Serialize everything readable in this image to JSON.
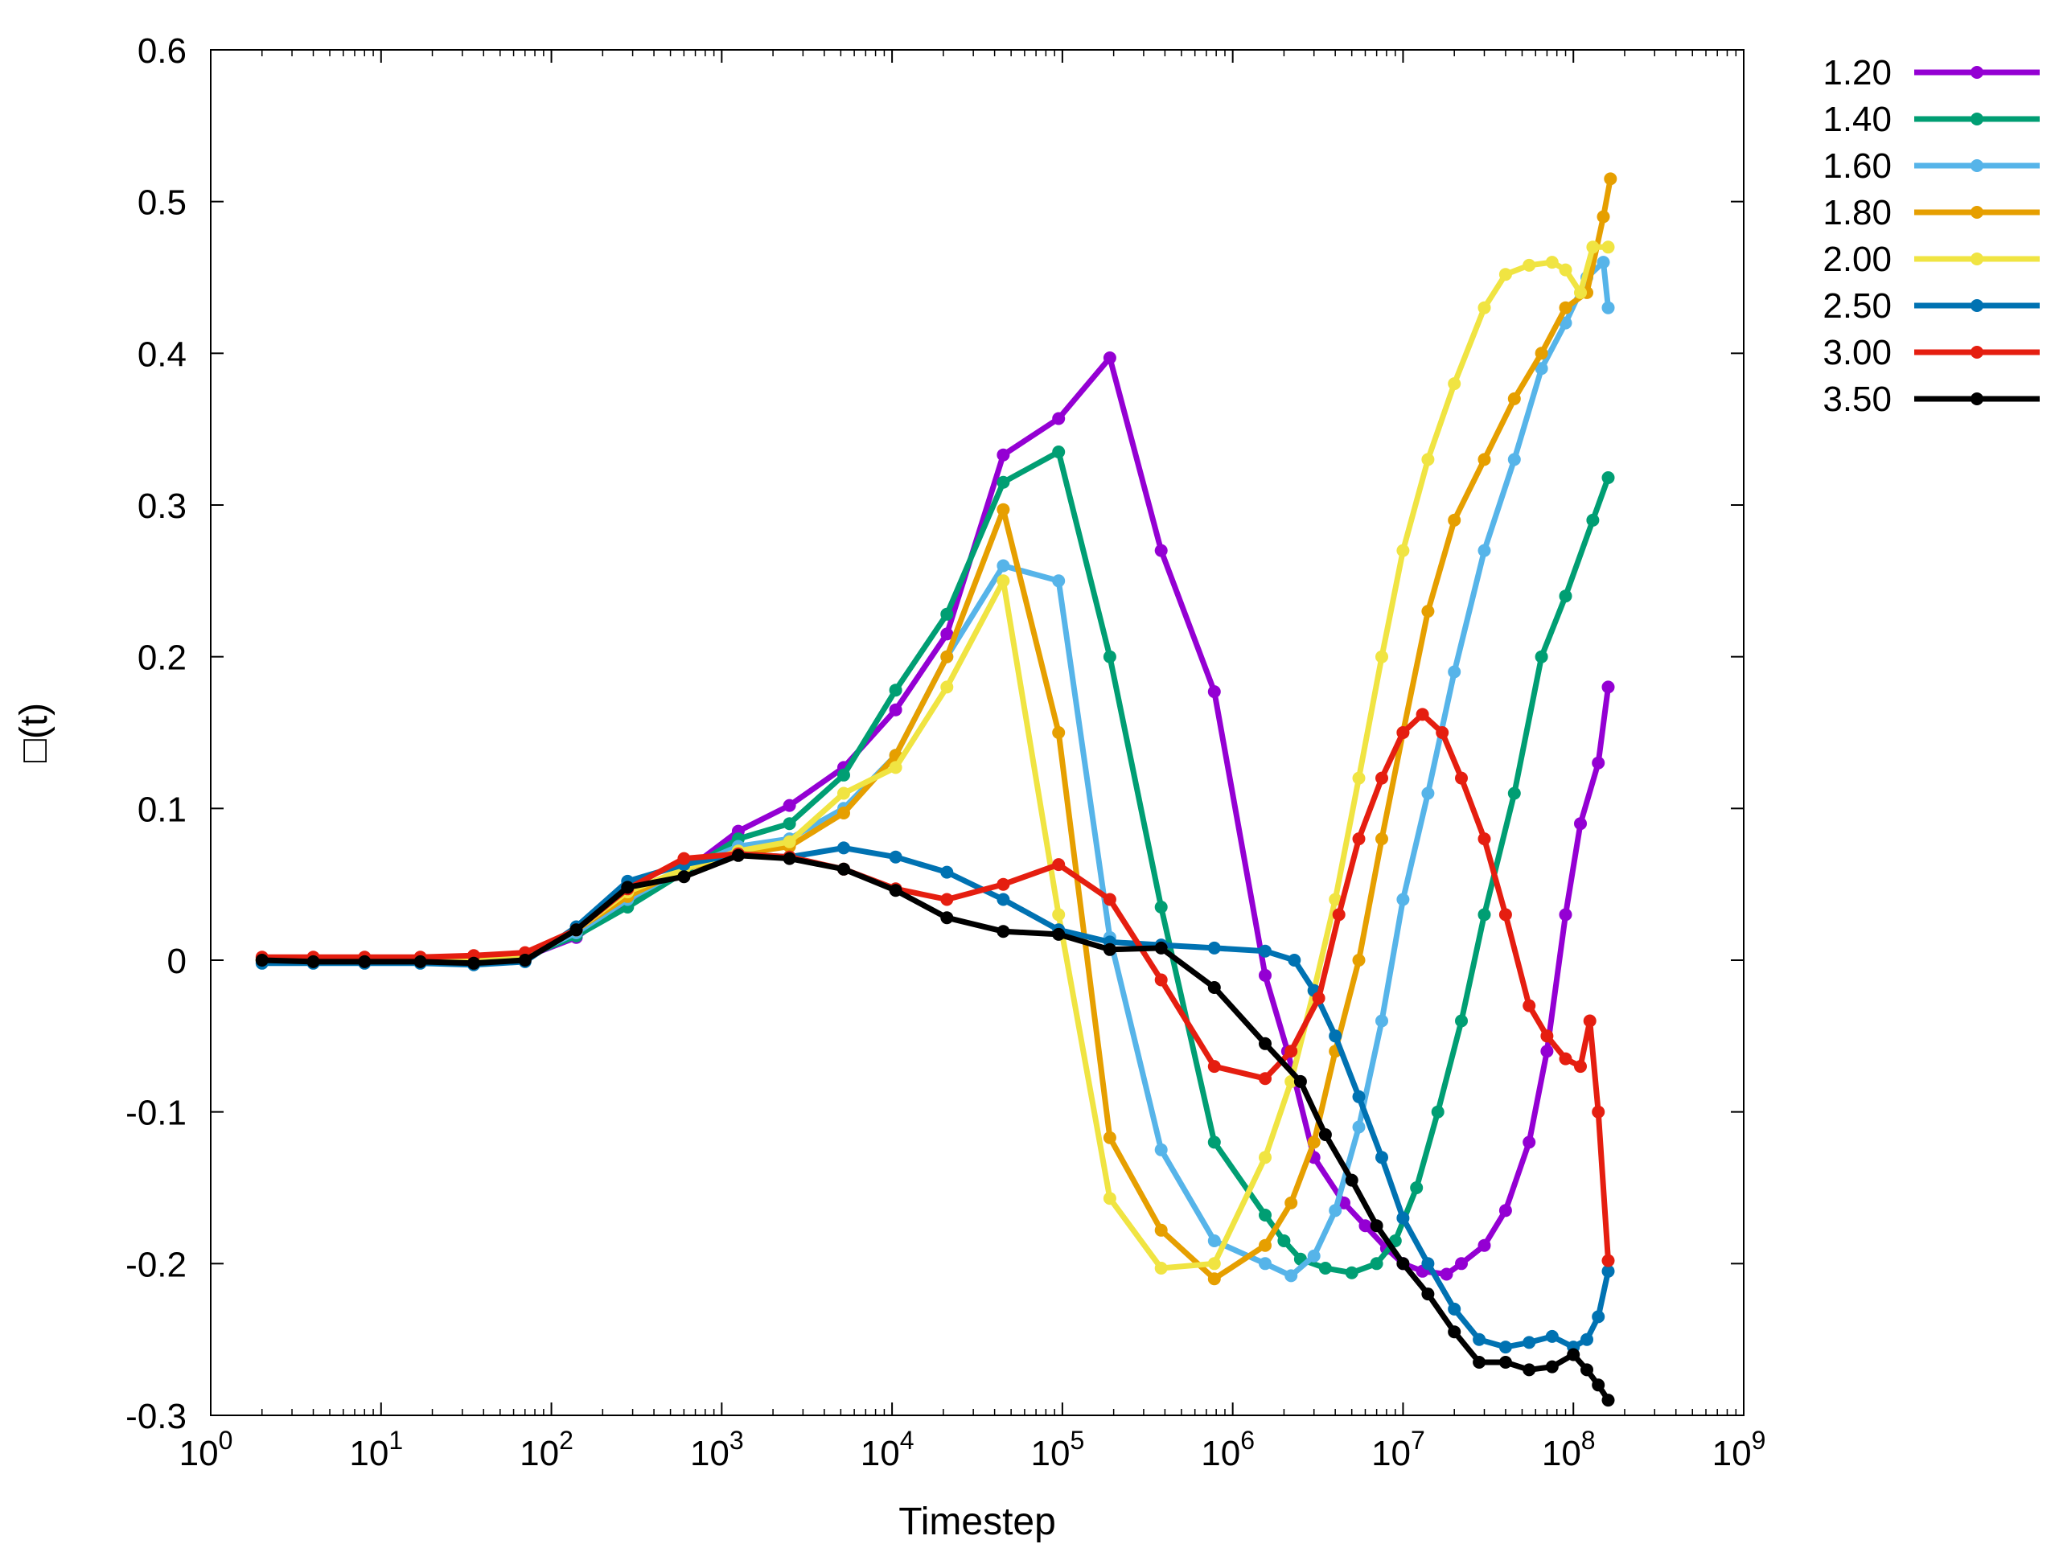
{
  "chart_data": {
    "type": "line",
    "xlabel": "Timestep",
    "ylabel": "□(t)",
    "xscale": "log",
    "xlim": [
      1,
      1000000000
    ],
    "ylim": [
      -0.3,
      0.6
    ],
    "x_tick_labels": [
      {
        "base": "10",
        "exp": "0"
      },
      {
        "base": "10",
        "exp": "1"
      },
      {
        "base": "10",
        "exp": "2"
      },
      {
        "base": "10",
        "exp": "3"
      },
      {
        "base": "10",
        "exp": "4"
      },
      {
        "base": "10",
        "exp": "5"
      },
      {
        "base": "10",
        "exp": "6"
      },
      {
        "base": "10",
        "exp": "7"
      },
      {
        "base": "10",
        "exp": "8"
      },
      {
        "base": "10",
        "exp": "9"
      }
    ],
    "y_ticks": [
      -0.3,
      -0.2,
      -0.1,
      0,
      0.1,
      0.2,
      0.3,
      0.4,
      0.5,
      0.6
    ],
    "y_tick_labels": [
      "-0.3",
      "-0.2",
      "-0.1",
      "0",
      "0.1",
      "0.2",
      "0.3",
      "0.4",
      "0.5",
      "0.6"
    ],
    "grid": false,
    "legend_position": "outside-top-right",
    "series": [
      {
        "name": "1.20",
        "color": "#9400d3",
        "points": [
          [
            2,
            0.0
          ],
          [
            4,
            0.001
          ],
          [
            8,
            0.001
          ],
          [
            17,
            0.0
          ],
          [
            35,
            0.0
          ],
          [
            70,
            0.002
          ],
          [
            140,
            0.015
          ],
          [
            280,
            0.04
          ],
          [
            600,
            0.058
          ],
          [
            1250,
            0.085
          ],
          [
            2500,
            0.102
          ],
          [
            5200,
            0.127
          ],
          [
            10500,
            0.165
          ],
          [
            21000,
            0.215
          ],
          [
            45000,
            0.333
          ],
          [
            95000,
            0.357
          ],
          [
            190000,
            0.397
          ],
          [
            380000,
            0.27
          ],
          [
            780000,
            0.177
          ],
          [
            1550000,
            -0.01
          ],
          [
            2100000,
            -0.06
          ],
          [
            3000000,
            -0.13
          ],
          [
            4500000,
            -0.16
          ],
          [
            6000000,
            -0.175
          ],
          [
            8000000,
            -0.19
          ],
          [
            10000000,
            -0.2
          ],
          [
            13000000,
            -0.205
          ],
          [
            18000000,
            -0.207
          ],
          [
            22000000,
            -0.2
          ],
          [
            30000000,
            -0.188
          ],
          [
            40000000,
            -0.165
          ],
          [
            55000000,
            -0.12
          ],
          [
            70000000,
            -0.06
          ],
          [
            90000000,
            0.03
          ],
          [
            110000000,
            0.09
          ],
          [
            140000000,
            0.13
          ],
          [
            160000000,
            0.18
          ]
        ]
      },
      {
        "name": "1.40",
        "color": "#009e73",
        "points": [
          [
            2,
            0.0
          ],
          [
            4,
            0.001
          ],
          [
            8,
            0.001
          ],
          [
            17,
            0.0
          ],
          [
            35,
            0.0
          ],
          [
            70,
            0.002
          ],
          [
            140,
            0.016
          ],
          [
            280,
            0.035
          ],
          [
            600,
            0.058
          ],
          [
            1250,
            0.08
          ],
          [
            2500,
            0.09
          ],
          [
            5200,
            0.122
          ],
          [
            10500,
            0.178
          ],
          [
            21000,
            0.228
          ],
          [
            45000,
            0.315
          ],
          [
            95000,
            0.335
          ],
          [
            190000,
            0.2
          ],
          [
            380000,
            0.035
          ],
          [
            780000,
            -0.12
          ],
          [
            1550000,
            -0.168
          ],
          [
            2000000,
            -0.185
          ],
          [
            2500000,
            -0.197
          ],
          [
            3500000,
            -0.203
          ],
          [
            5000000,
            -0.206
          ],
          [
            7000000,
            -0.2
          ],
          [
            9000000,
            -0.185
          ],
          [
            12000000,
            -0.15
          ],
          [
            16000000,
            -0.1
          ],
          [
            22000000,
            -0.04
          ],
          [
            30000000,
            0.03
          ],
          [
            45000000,
            0.11
          ],
          [
            65000000,
            0.2
          ],
          [
            90000000,
            0.24
          ],
          [
            130000000,
            0.29
          ],
          [
            160000000,
            0.318
          ]
        ]
      },
      {
        "name": "1.60",
        "color": "#56b4e9",
        "points": [
          [
            2,
            0.0
          ],
          [
            4,
            0.001
          ],
          [
            8,
            0.001
          ],
          [
            17,
            0.0
          ],
          [
            35,
            0.0
          ],
          [
            70,
            0.002
          ],
          [
            140,
            0.018
          ],
          [
            280,
            0.04
          ],
          [
            600,
            0.06
          ],
          [
            1250,
            0.075
          ],
          [
            2500,
            0.08
          ],
          [
            5200,
            0.1
          ],
          [
            10500,
            0.135
          ],
          [
            21000,
            0.2
          ],
          [
            45000,
            0.26
          ],
          [
            95000,
            0.25
          ],
          [
            190000,
            0.015
          ],
          [
            380000,
            -0.125
          ],
          [
            780000,
            -0.185
          ],
          [
            1550000,
            -0.2
          ],
          [
            2200000,
            -0.208
          ],
          [
            3000000,
            -0.195
          ],
          [
            4000000,
            -0.165
          ],
          [
            5500000,
            -0.11
          ],
          [
            7500000,
            -0.04
          ],
          [
            10000000,
            0.04
          ],
          [
            14000000,
            0.11
          ],
          [
            20000000,
            0.19
          ],
          [
            30000000,
            0.27
          ],
          [
            45000000,
            0.33
          ],
          [
            65000000,
            0.39
          ],
          [
            90000000,
            0.42
          ],
          [
            120000000,
            0.45
          ],
          [
            150000000,
            0.46
          ],
          [
            160000000,
            0.43
          ]
        ]
      },
      {
        "name": "1.80",
        "color": "#e69f00",
        "points": [
          [
            2,
            0.0
          ],
          [
            4,
            0.001
          ],
          [
            8,
            0.001
          ],
          [
            17,
            0.0
          ],
          [
            35,
            0.0
          ],
          [
            70,
            0.002
          ],
          [
            140,
            0.02
          ],
          [
            280,
            0.042
          ],
          [
            600,
            0.06
          ],
          [
            1250,
            0.07
          ],
          [
            2500,
            0.075
          ],
          [
            5200,
            0.097
          ],
          [
            10500,
            0.135
          ],
          [
            21000,
            0.2
          ],
          [
            45000,
            0.297
          ],
          [
            95000,
            0.15
          ],
          [
            190000,
            -0.117
          ],
          [
            380000,
            -0.178
          ],
          [
            780000,
            -0.21
          ],
          [
            1550000,
            -0.188
          ],
          [
            2200000,
            -0.16
          ],
          [
            3000000,
            -0.12
          ],
          [
            4000000,
            -0.06
          ],
          [
            5500000,
            0.0
          ],
          [
            7500000,
            0.08
          ],
          [
            10000000,
            0.15
          ],
          [
            14000000,
            0.23
          ],
          [
            20000000,
            0.29
          ],
          [
            30000000,
            0.33
          ],
          [
            45000000,
            0.37
          ],
          [
            65000000,
            0.4
          ],
          [
            90000000,
            0.43
          ],
          [
            120000000,
            0.44
          ],
          [
            150000000,
            0.49
          ],
          [
            165000000,
            0.515
          ]
        ]
      },
      {
        "name": "2.00",
        "color": "#f0e442",
        "points": [
          [
            2,
            0.0
          ],
          [
            4,
            0.001
          ],
          [
            8,
            0.001
          ],
          [
            17,
            0.0
          ],
          [
            35,
            0.0
          ],
          [
            70,
            0.002
          ],
          [
            140,
            0.02
          ],
          [
            280,
            0.045
          ],
          [
            600,
            0.06
          ],
          [
            1250,
            0.072
          ],
          [
            2500,
            0.078
          ],
          [
            5200,
            0.11
          ],
          [
            10500,
            0.127
          ],
          [
            21000,
            0.18
          ],
          [
            45000,
            0.25
          ],
          [
            95000,
            0.03
          ],
          [
            190000,
            -0.157
          ],
          [
            380000,
            -0.203
          ],
          [
            780000,
            -0.2
          ],
          [
            1550000,
            -0.13
          ],
          [
            2200000,
            -0.08
          ],
          [
            3000000,
            -0.02
          ],
          [
            4000000,
            0.04
          ],
          [
            5500000,
            0.12
          ],
          [
            7500000,
            0.2
          ],
          [
            10000000,
            0.27
          ],
          [
            14000000,
            0.33
          ],
          [
            20000000,
            0.38
          ],
          [
            30000000,
            0.43
          ],
          [
            40000000,
            0.452
          ],
          [
            55000000,
            0.458
          ],
          [
            75000000,
            0.46
          ],
          [
            90000000,
            0.455
          ],
          [
            110000000,
            0.44
          ],
          [
            130000000,
            0.47
          ],
          [
            160000000,
            0.47
          ]
        ]
      },
      {
        "name": "2.50",
        "color": "#0072b2",
        "points": [
          [
            2,
            -0.002
          ],
          [
            4,
            -0.002
          ],
          [
            8,
            -0.002
          ],
          [
            17,
            -0.002
          ],
          [
            35,
            -0.003
          ],
          [
            70,
            -0.001
          ],
          [
            140,
            0.022
          ],
          [
            280,
            0.052
          ],
          [
            600,
            0.063
          ],
          [
            1250,
            0.07
          ],
          [
            2500,
            0.068
          ],
          [
            5200,
            0.074
          ],
          [
            10500,
            0.068
          ],
          [
            21000,
            0.058
          ],
          [
            45000,
            0.04
          ],
          [
            95000,
            0.02
          ],
          [
            190000,
            0.012
          ],
          [
            380000,
            0.01
          ],
          [
            780000,
            0.008
          ],
          [
            1550000,
            0.006
          ],
          [
            2300000,
            0.0
          ],
          [
            3000000,
            -0.02
          ],
          [
            4000000,
            -0.05
          ],
          [
            5500000,
            -0.09
          ],
          [
            7500000,
            -0.13
          ],
          [
            10000000,
            -0.17
          ],
          [
            14000000,
            -0.2
          ],
          [
            20000000,
            -0.23
          ],
          [
            28000000,
            -0.25
          ],
          [
            40000000,
            -0.255
          ],
          [
            55000000,
            -0.252
          ],
          [
            75000000,
            -0.248
          ],
          [
            100000000,
            -0.255
          ],
          [
            120000000,
            -0.25
          ],
          [
            140000000,
            -0.235
          ],
          [
            160000000,
            -0.205
          ]
        ]
      },
      {
        "name": "3.00",
        "color": "#e51e10",
        "points": [
          [
            2,
            0.002
          ],
          [
            4,
            0.002
          ],
          [
            8,
            0.002
          ],
          [
            17,
            0.002
          ],
          [
            35,
            0.003
          ],
          [
            70,
            0.005
          ],
          [
            140,
            0.02
          ],
          [
            280,
            0.047
          ],
          [
            600,
            0.067
          ],
          [
            1250,
            0.07
          ],
          [
            2500,
            0.068
          ],
          [
            5200,
            0.06
          ],
          [
            10500,
            0.047
          ],
          [
            21000,
            0.04
          ],
          [
            45000,
            0.05
          ],
          [
            95000,
            0.063
          ],
          [
            190000,
            0.04
          ],
          [
            380000,
            -0.013
          ],
          [
            780000,
            -0.07
          ],
          [
            1550000,
            -0.078
          ],
          [
            2200000,
            -0.06
          ],
          [
            3200000,
            -0.025
          ],
          [
            4200000,
            0.03
          ],
          [
            5500000,
            0.08
          ],
          [
            7500000,
            0.12
          ],
          [
            10000000,
            0.15
          ],
          [
            13000000,
            0.162
          ],
          [
            17000000,
            0.15
          ],
          [
            22000000,
            0.12
          ],
          [
            30000000,
            0.08
          ],
          [
            40000000,
            0.03
          ],
          [
            55000000,
            -0.03
          ],
          [
            70000000,
            -0.05
          ],
          [
            90000000,
            -0.065
          ],
          [
            110000000,
            -0.07
          ],
          [
            125000000,
            -0.04
          ],
          [
            140000000,
            -0.1
          ],
          [
            160000000,
            -0.198
          ]
        ]
      },
      {
        "name": "3.50",
        "color": "#000000",
        "points": [
          [
            2,
            0.0
          ],
          [
            4,
            -0.001
          ],
          [
            8,
            -0.001
          ],
          [
            17,
            -0.001
          ],
          [
            35,
            -0.002
          ],
          [
            70,
            0.0
          ],
          [
            140,
            0.02
          ],
          [
            280,
            0.048
          ],
          [
            600,
            0.055
          ],
          [
            1250,
            0.069
          ],
          [
            2500,
            0.067
          ],
          [
            5200,
            0.06
          ],
          [
            10500,
            0.046
          ],
          [
            21000,
            0.028
          ],
          [
            45000,
            0.019
          ],
          [
            95000,
            0.017
          ],
          [
            190000,
            0.007
          ],
          [
            380000,
            0.008
          ],
          [
            780000,
            -0.018
          ],
          [
            1550000,
            -0.055
          ],
          [
            2500000,
            -0.08
          ],
          [
            3500000,
            -0.115
          ],
          [
            5000000,
            -0.145
          ],
          [
            7000000,
            -0.175
          ],
          [
            10000000,
            -0.2
          ],
          [
            14000000,
            -0.22
          ],
          [
            20000000,
            -0.245
          ],
          [
            28000000,
            -0.265
          ],
          [
            40000000,
            -0.265
          ],
          [
            55000000,
            -0.27
          ],
          [
            75000000,
            -0.268
          ],
          [
            100000000,
            -0.26
          ],
          [
            120000000,
            -0.27
          ],
          [
            140000000,
            -0.28
          ],
          [
            160000000,
            -0.29
          ]
        ]
      }
    ]
  }
}
